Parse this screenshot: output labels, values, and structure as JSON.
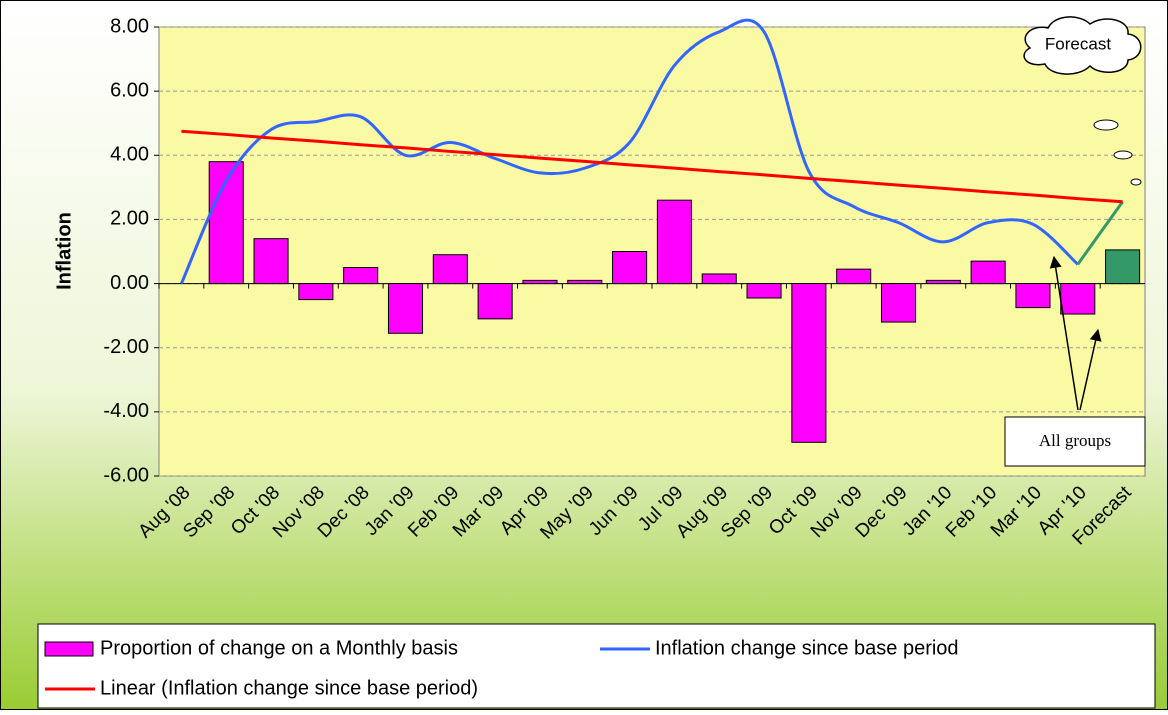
{
  "chart_data": {
    "type": "bar",
    "ylabel": "Inflation",
    "categories": [
      "Aug '08",
      "Sep '08",
      "Oct '08",
      "Nov '08",
      "Dec '08",
      "Jan '09",
      "Feb '09",
      "Mar '09",
      "Apr '09",
      "May '09",
      "Jun '09",
      "Jul '09",
      "Aug '09",
      "Sep '09",
      "Oct '09",
      "Nov '09",
      "Dec '09",
      "Jan '10",
      "Feb '10",
      "Mar '10",
      "Apr '10",
      "Forecast"
    ],
    "series": [
      {
        "name": "Proportion of change on a Monthly basis",
        "type": "bar",
        "color": "#ff00ff",
        "forecast_color": "#339966",
        "values": [
          null,
          3.8,
          1.4,
          -0.5,
          0.5,
          -1.55,
          0.9,
          -1.1,
          0.1,
          0.1,
          1.0,
          2.6,
          0.3,
          -0.45,
          -4.95,
          0.45,
          -1.2,
          0.1,
          0.7,
          -0.75,
          -0.95,
          1.05
        ]
      },
      {
        "name": "Inflation change since base period",
        "type": "line",
        "color": "#3366ff",
        "forecast_color": "#339966",
        "values": [
          0,
          3.2,
          4.8,
          5.05,
          5.2,
          4.0,
          4.4,
          3.9,
          3.45,
          3.6,
          4.4,
          6.8,
          7.85,
          7.85,
          3.5,
          2.4,
          1.9,
          1.3,
          1.9,
          1.85,
          0.6,
          2.55
        ]
      },
      {
        "name": "Linear (Inflation change since base period)",
        "type": "line",
        "color": "#ff0000",
        "values": [
          4.75,
          4.65,
          4.54,
          4.44,
          4.33,
          4.23,
          4.12,
          4.02,
          3.91,
          3.81,
          3.7,
          3.6,
          3.49,
          3.39,
          3.28,
          3.18,
          3.07,
          2.97,
          2.86,
          2.76,
          2.65,
          2.55
        ]
      }
    ],
    "ylim": [
      -6,
      8
    ],
    "yticks": [
      {
        "value": -6,
        "label": "-6.00"
      },
      {
        "value": -4,
        "label": "-4.00"
      },
      {
        "value": -2,
        "label": "-2.00"
      },
      {
        "value": 0,
        "label": "0.00"
      },
      {
        "value": 2,
        "label": "2.00"
      },
      {
        "value": 4,
        "label": "4.00"
      },
      {
        "value": 6,
        "label": "6.00"
      },
      {
        "value": 8,
        "label": "8.00"
      }
    ],
    "grid": true,
    "legend": "bottom",
    "annotations": [
      "Forecast",
      "All groups"
    ]
  }
}
